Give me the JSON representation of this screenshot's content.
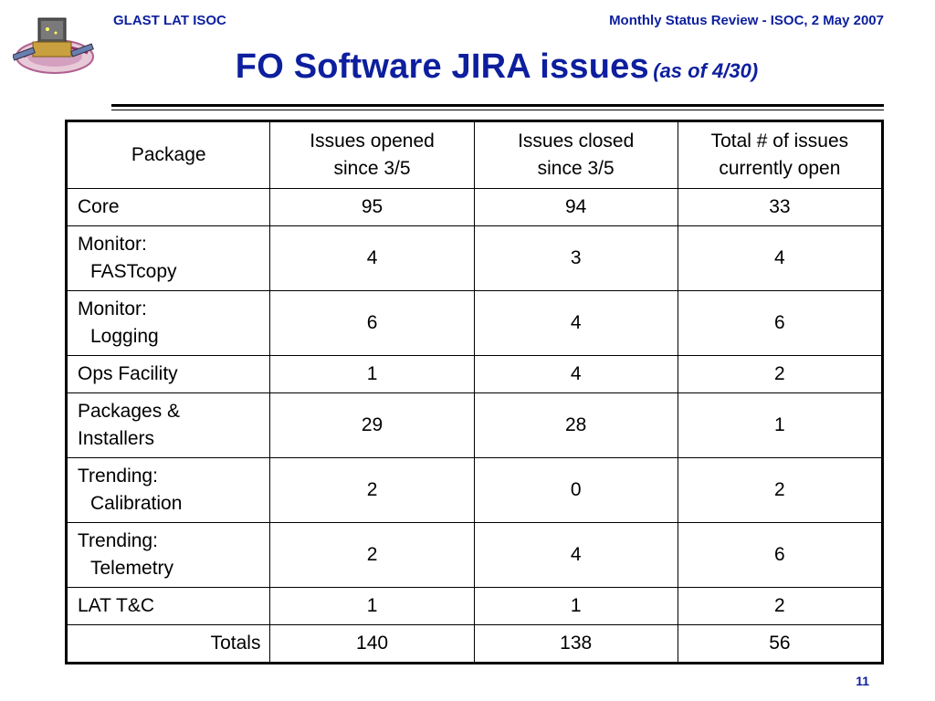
{
  "header": {
    "left": "GLAST LAT ISOC",
    "right": "Monthly Status Review - ISOC, 2 May 2007"
  },
  "title": {
    "main": "FO Software JIRA issues",
    "sub": "(as of 4/30)"
  },
  "table": {
    "columns": [
      {
        "line1": "Package",
        "line2": ""
      },
      {
        "line1": "Issues opened",
        "line2": "since 3/5"
      },
      {
        "line1": "Issues closed",
        "line2": "since 3/5"
      },
      {
        "line1": "Total # of issues",
        "line2": "currently open"
      }
    ],
    "rows": [
      {
        "pkg1": "Core",
        "pkg2": "",
        "opened": "95",
        "closed": "94",
        "open": "33"
      },
      {
        "pkg1": "Monitor:",
        "pkg2": "FASTcopy",
        "opened": "4",
        "closed": "3",
        "open": "4"
      },
      {
        "pkg1": "Monitor:",
        "pkg2": "Logging",
        "opened": "6",
        "closed": "4",
        "open": "6"
      },
      {
        "pkg1": "Ops Facility",
        "pkg2": "",
        "opened": "1",
        "closed": "4",
        "open": "2"
      },
      {
        "pkg1": "Packages &",
        "pkg2": "Installers",
        "opened": "29",
        "closed": "28",
        "open": "1"
      },
      {
        "pkg1": "Trending:",
        "pkg2": "Calibration",
        "opened": "2",
        "closed": "0",
        "open": "2"
      },
      {
        "pkg1": "Trending:",
        "pkg2": "Telemetry",
        "opened": "2",
        "closed": "4",
        "open": "6"
      },
      {
        "pkg1": "LAT T&C",
        "pkg2": "",
        "opened": "1",
        "closed": "1",
        "open": "2"
      }
    ],
    "totals": {
      "label": "Totals",
      "opened": "140",
      "closed": "138",
      "open": "56"
    }
  },
  "footer": {
    "page_number": "11"
  },
  "colors": {
    "header_text": "#0d1f9e",
    "table_border": "#000000"
  },
  "icons": {
    "logo": "glast-satellite-logo"
  }
}
